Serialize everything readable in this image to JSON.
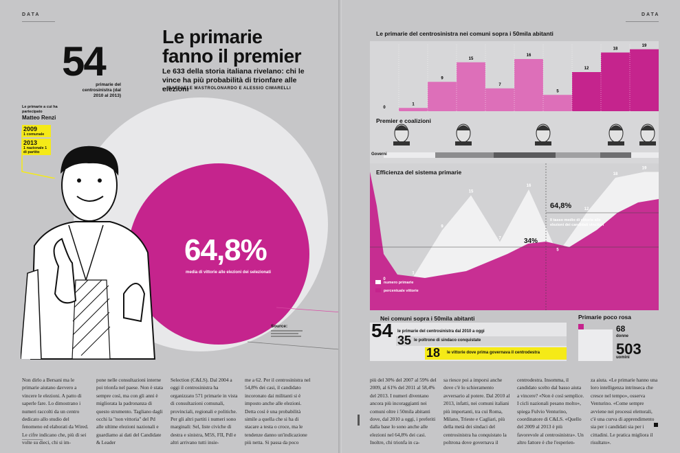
{
  "left_page": {
    "section_tag": "DATA",
    "headline_lines": [
      "Le primarie",
      "fanno il premier"
    ],
    "dek": "Le 633 della storia italiana rivelano: chi le vince ha più probabilità di trionfare alle elezioni",
    "byline": "— RAFFAELE MASTROLONARDO E ALESSIO CIMARELLI",
    "big_number": "54",
    "big_number_caption": "primarie del centrosinistra (dal 2010 al 2013)",
    "renzi_label": "Le primarie a cui ha partecipato",
    "renzi_name": "Matteo Renzi",
    "renzi_years": [
      {
        "year": "2009",
        "detail": "1 comunale"
      },
      {
        "year": "2013",
        "detail": "1 nazionale 1 di partito"
      }
    ],
    "headline_pct": "64,8%",
    "headline_pct_caption": "media di vittorie alle elezioni dei selezionati",
    "source_label": "Source:",
    "columns": [
      "Non dirlo a Bersani ma le primarie aiutano davvero a vincere le elezioni. A patto di saperle fare. Lo dimostrano i numeri raccolti da un centro dedicato allo studio del fenomeno ed elaborati da Wired. Le cifre indicano che, più di sei volte su dieci, chi si im-",
      "pone nelle consultazioni interne poi trionfa nel paese. Non è stata sempre così, ma con gli anni è migliorata la padronanza di questo strumento. Tagliano dagli occhi la \"non vittoria\" del Pd alle ultime elezioni nazionali e guardiamo ai dati del Candidate & Leader",
      "Selection (C&LS). Dal 2004 a oggi il centrosinistra ha organizzato 571 primarie in vista di consultazioni comunali, provinciali, regionali e politiche. Per gli altri partiti i numeri sono marginali: Sel, liste civiche di destra e sinistra, M5S, FII, Pdl e altri arrivano tutti insie-",
      "me a 62. Per il centrosinistra nel 54,8% dei casi, il candidato incoronato dai militanti si è imposto anche alle elezioni. Detta così è una probabilità simile a quella che si ha di stacare a testa o croce, ma le tendenze danno un'indicazione più netta. Si passa da poco"
    ]
  },
  "right_page": {
    "section_tag": "DATA",
    "bar_chart_title": "Le primarie del centrosinistra nei comuni sopra i 50mila abitanti",
    "leaders_title": "Premier e coalizioni",
    "governi_label": "Governi",
    "efficiency_title": "Efficienza del sistema primarie",
    "pct_label_1": "64,8%",
    "pct_label_2": "34%",
    "pct_note": "Il tasso medio di vittoria alle elezioni dei candidati vincitori",
    "legend": [
      "numero primarie",
      "percentuale vittorie"
    ],
    "stats_title": "Nei comuni sopra i 50mila abitanti",
    "stats": [
      {
        "value": "54",
        "label": "le primarie del centrosinistra dal 2010 a oggi"
      },
      {
        "value": "35",
        "label": "le poltrone di sindaco conquistate"
      },
      {
        "value": "18",
        "label": "le vittorie dove prima governava il centrodestra"
      }
    ],
    "rosa_title": "Primarie poco rosa",
    "rosa": [
      {
        "value": "68",
        "label": "donne"
      },
      {
        "value": "503",
        "label": "uomini"
      }
    ],
    "columns": [
      "più del 30% del 2007 al 59% del 2009, al 61% del 2011 al 58,4% del 2013. I numeri diventano ancora più incoraggianti nei comuni oltre i 50mila abitanti dove, dal 2010 a oggi, i preferiti dalla base lo sono anche alle elezioni nel 64,8% dei casi. Inoltre, chi trionfa in ca-",
      "sa riesce poi a imporsi anche dove c'è lo schieramento avversario al potere. Dal 2010 al 2013, infatti, nei comuni italiani più importanti, tra cui Roma, Milano, Trieste e Cagliari, più della metà dei sindaci del centrosinistra ha conquistato la poltrona dove governava il",
      "centrodestra. Insomma, il candidato scelto dal basso aiuta a vincere? «Non è così semplice. I cicli nazionali pesano molto», spiega Fulvio Venturino, coordinatore di C&LS. «Quello del 2009 al 2013 è più favorevole al centrosinistra». Un altro fattore è che l'esperien-",
      "za aiuta. «Le primarie hanno una loro intelligenza intrinseca che cresce nel tempo», osserva Venturino. «Come sempre avviene nei processi elettorali, c'è una curva di apprendimento sia per i candidati sia per i cittadini. Le pratica migliora il risultato»."
    ]
  },
  "chart_data": [
    {
      "type": "bar",
      "title": "Le primarie del centrosinistra nei comuni sopra i 50mila abitanti",
      "values": [
        0,
        1,
        9,
        15,
        7,
        16,
        5,
        12,
        18,
        19
      ]
    },
    {
      "type": "area",
      "title": "Efficienza del sistema primarie",
      "series": [
        {
          "name": "numero primarie",
          "values": [
            0,
            1,
            9,
            15,
            7,
            16,
            5,
            12,
            18,
            19
          ]
        },
        {
          "name": "percentuale vittorie",
          "annotations": [
            "34%",
            "64,8%"
          ]
        }
      ]
    }
  ],
  "colors": {
    "magenta": "#c5248d",
    "light_magenta": "#dd6fb9",
    "yellow": "#f5ea17",
    "bg": "#c6c6c8"
  }
}
